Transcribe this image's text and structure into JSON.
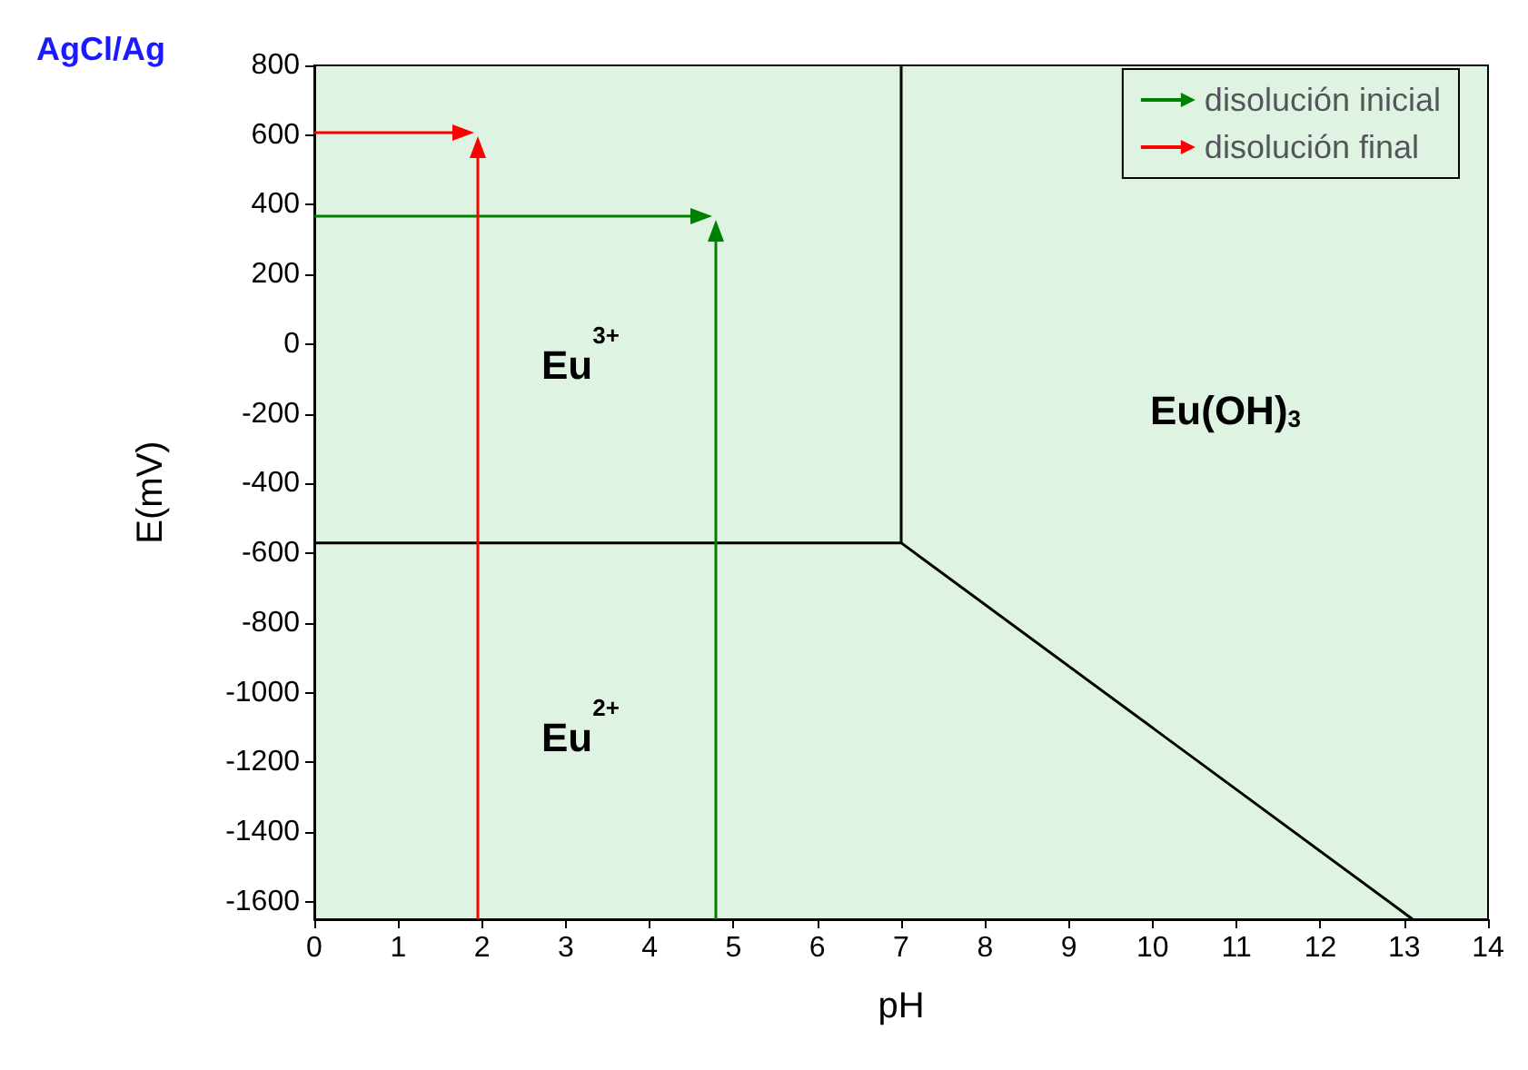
{
  "chart_data": {
    "type": "line",
    "xlabel": "pH",
    "ylabel": "E(mV)",
    "xlim": [
      0,
      14
    ],
    "xticks": [
      0,
      1,
      2,
      3,
      4,
      5,
      6,
      7,
      8,
      9,
      10,
      11,
      12,
      13,
      14
    ],
    "ylim": [
      -1650,
      800
    ],
    "yticks": [
      -1600,
      -1400,
      -1200,
      -1000,
      -800,
      -600,
      -400,
      -200,
      0,
      200,
      400,
      600,
      800
    ],
    "grid": false,
    "legend": "top right",
    "series": [
      {
        "color": "#000000",
        "x": [
          0,
          7,
          13.1
        ],
        "values": [
          -570,
          -570,
          -1650
        ]
      },
      {
        "color": "#000000",
        "x": [
          7,
          7
        ],
        "values": [
          -570,
          800
        ]
      },
      {
        "name": "disolución inicial",
        "color": "#008000"
      },
      {
        "name": "disolución final",
        "color": "#ff0000"
      }
    ],
    "annotations": [
      "AgCl/Ag",
      "Eu$^{3+}$",
      "Eu$^{2+}$",
      "Eu(OH)$_{3}$"
    ]
  }
}
